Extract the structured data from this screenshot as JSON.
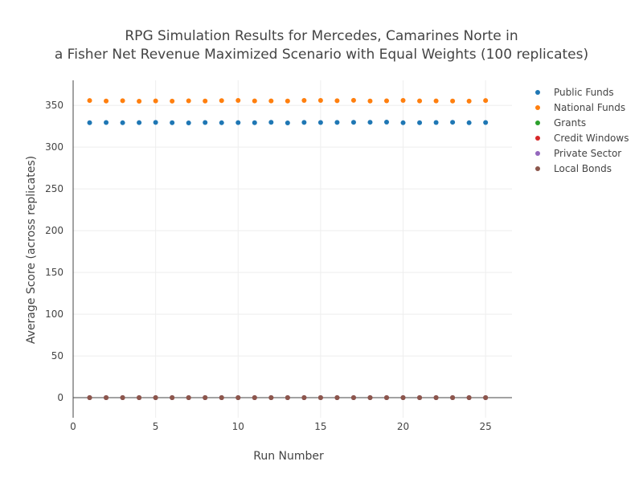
{
  "chart_data": {
    "type": "scatter",
    "title": [
      "RPG Simulation Results for Mercedes, Camarines Norte in",
      "a Fisher Net Revenue Maximized Scenario with Equal Weights (100 replicates)"
    ],
    "xlabel": "Run Number",
    "ylabel": "Average Score (across replicates)",
    "xlim": [
      0,
      26.6
    ],
    "ylim": [
      -24,
      380
    ],
    "xticks": [
      0,
      5,
      10,
      15,
      20,
      25
    ],
    "yticks": [
      0,
      50,
      100,
      150,
      200,
      250,
      300,
      350
    ],
    "grid": true,
    "legend_position": "top-right",
    "x": [
      1,
      2,
      3,
      4,
      5,
      6,
      7,
      8,
      9,
      10,
      11,
      12,
      13,
      14,
      15,
      16,
      17,
      18,
      19,
      20,
      21,
      22,
      23,
      24,
      25
    ],
    "series": [
      {
        "name": "Public Funds",
        "color": "#1f77b4",
        "values": [
          329.3,
          329.5,
          329.2,
          329.4,
          329.6,
          329.3,
          329.0,
          329.5,
          329.2,
          329.4,
          329.3,
          329.7,
          329.0,
          329.6,
          329.5,
          329.6,
          329.7,
          329.8,
          330.0,
          329.2,
          329.3,
          329.5,
          329.8,
          329.2,
          329.5
        ]
      },
      {
        "name": "National Funds",
        "color": "#ff7f0e",
        "values": [
          355.8,
          355.2,
          355.6,
          355.0,
          355.3,
          355.1,
          355.5,
          355.2,
          355.7,
          356.0,
          355.3,
          355.4,
          355.2,
          355.9,
          356.0,
          355.6,
          356.1,
          355.2,
          355.5,
          355.9,
          355.3,
          355.4,
          355.2,
          355.1,
          355.8
        ]
      },
      {
        "name": "Grants",
        "color": "#2ca02c",
        "values": [
          0,
          0,
          0,
          0,
          0,
          0,
          0,
          0,
          0,
          0,
          0,
          0,
          0,
          0,
          0,
          0,
          0,
          0,
          0,
          0,
          0,
          0,
          0,
          0,
          0
        ]
      },
      {
        "name": "Credit Windows",
        "color": "#d62728",
        "values": [
          0,
          0,
          0,
          0,
          0,
          0,
          0,
          0,
          0,
          0,
          0,
          0,
          0,
          0,
          0,
          0,
          0,
          0,
          0,
          0,
          0,
          0,
          0,
          0,
          0
        ]
      },
      {
        "name": "Private Sector",
        "color": "#9467bd",
        "values": [
          0,
          0,
          0,
          0,
          0,
          0,
          0,
          0,
          0,
          0,
          0,
          0,
          0,
          0,
          0,
          0,
          0,
          0,
          0,
          0,
          0,
          0,
          0,
          0,
          0
        ]
      },
      {
        "name": "Local Bonds",
        "color": "#8c564b",
        "values": [
          0,
          0,
          0,
          0,
          0,
          0,
          0,
          0,
          0,
          0,
          0,
          0,
          0,
          0,
          0,
          0,
          0,
          0,
          0,
          0,
          0,
          0,
          0,
          0,
          0
        ]
      }
    ]
  }
}
